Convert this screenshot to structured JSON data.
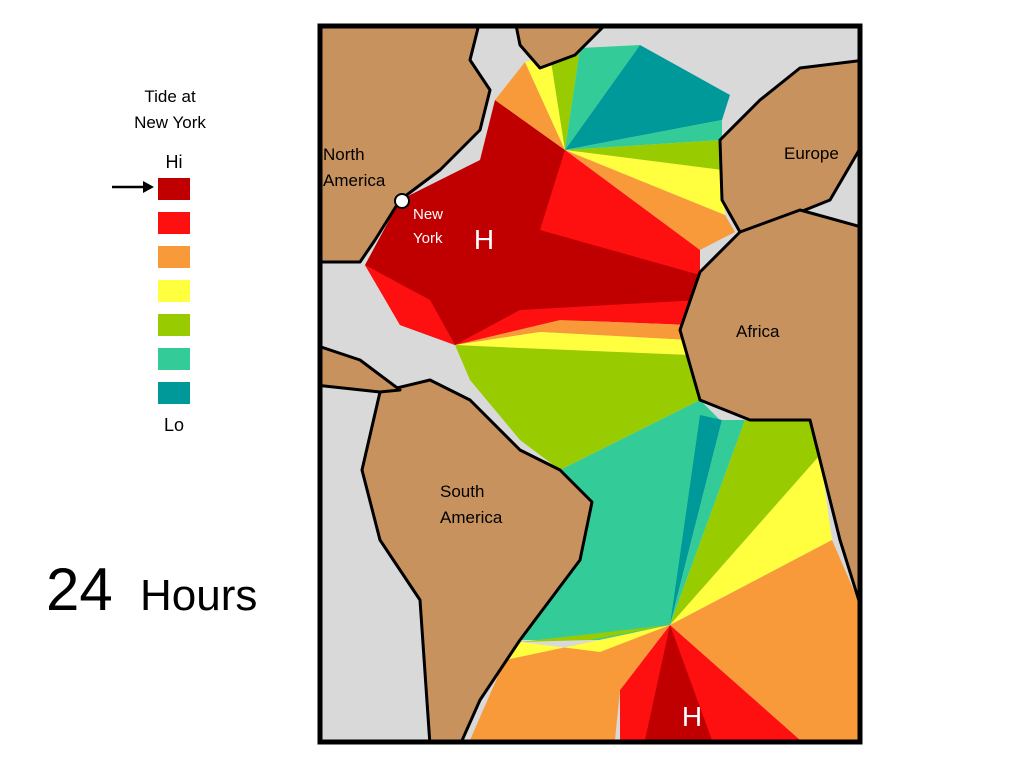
{
  "legend": {
    "title": [
      "Tide at",
      "New York"
    ],
    "high": "Hi",
    "low": "Lo"
  },
  "time": {
    "number": "24",
    "unit": "Hours"
  },
  "map": {
    "labels": {
      "north_america": [
        "North",
        "America"
      ],
      "new_york": [
        "New",
        "York"
      ],
      "europe": "Europe",
      "africa": "Africa",
      "south_america": [
        "South",
        "America"
      ],
      "high_north": "H",
      "high_south": "H"
    }
  }
}
